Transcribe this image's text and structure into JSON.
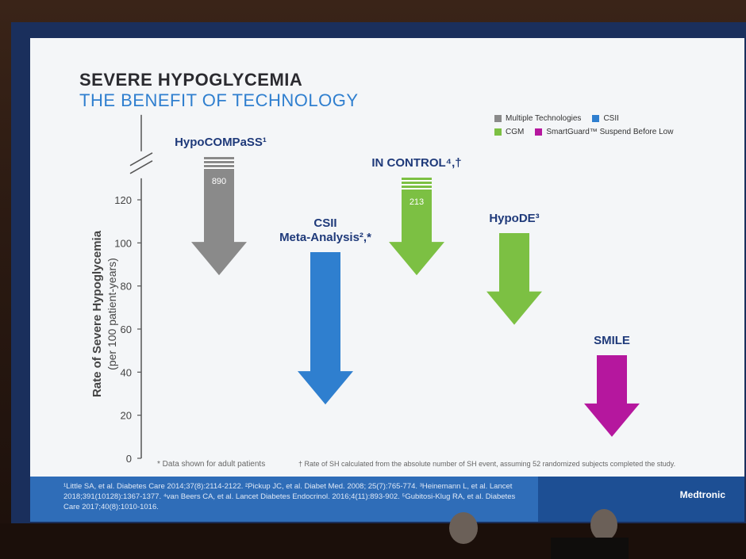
{
  "slide": {
    "title_line1": "SEVERE HYPOGLYCEMIA",
    "title_line2": "THE BENEFIT OF TECHNOLOGY",
    "legend": [
      {
        "label": "Multiple Technologies",
        "color": "#8a8a8a"
      },
      {
        "label": "CSII",
        "color": "#2f7fcf"
      },
      {
        "label": "CGM",
        "color": "#7cc043"
      },
      {
        "label": "SmartGuard™ Suspend Before Low",
        "color": "#b5179e"
      }
    ],
    "ylabel_main": "Rate of Severe Hypoglycemia",
    "ylabel_sub": "(per 100 patient-years)",
    "footnote_left": "* Data shown for adult patients",
    "footnote_right": "† Rate of SH calculated from the absolute number of SH event, assuming 52 randomized subjects completed the study.",
    "references": "¹Little SA, et al. Diabetes Care 2014;37(8):2114-2122. ²Pickup JC, et al. Diabet Med. 2008; 25(7):765-774. ³Heinemann L, et al. Lancet 2018;391(10128):1367-1377. ⁴van Beers CA, et al. Lancet Diabetes Endocrinol. 2016;4(11):893-902. ⁵Gubitosi-Klug RA, et al. Diabetes Care 2017;40(8):1010-1016.",
    "brand": "Medtronic"
  },
  "chart_data": {
    "type": "bar",
    "title": "SEVERE HYPOGLYCEMIA",
    "subtitle": "THE BENEFIT OF TECHNOLOGY",
    "ylabel": "Rate of Severe Hypoglycemia (per 100 patient-years)",
    "ylim": [
      0,
      130
    ],
    "yticks": [
      0,
      20,
      40,
      60,
      80,
      100,
      120
    ],
    "axis_break": true,
    "grid": false,
    "legend_position": "top-right",
    "categories": [
      "HypoCOMPaSS¹",
      "CSII Meta-Analysis²,*",
      "IN CONTROL⁴,†",
      "HypoDE³",
      "SMILE"
    ],
    "series": [
      {
        "name": "Multiple Technologies",
        "color": "#8a8a8a",
        "values": [
          890,
          null,
          null,
          null,
          null
        ]
      },
      {
        "name": "CSII",
        "color": "#2f7fcf",
        "values": [
          null,
          25,
          null,
          null,
          null
        ]
      },
      {
        "name": "CGM",
        "color": "#7cc043",
        "values": [
          null,
          null,
          213,
          62,
          null
        ]
      },
      {
        "name": "SmartGuard™ Suspend Before Low",
        "color": "#b5179e",
        "values": [
          null,
          null,
          null,
          null,
          10
        ]
      }
    ],
    "bars": [
      {
        "category": "HypoCOMPaSS¹",
        "label_line1": "HypoCOMPaSS¹",
        "label_line2": "",
        "value": 890,
        "value_label": "890",
        "axis_break": true,
        "color": "#8a8a8a"
      },
      {
        "category": "CSII Meta-Analysis²,*",
        "label_line1": "CSII",
        "label_line2": "Meta-Analysis²,*",
        "value": 25,
        "value_label": "",
        "axis_break": false,
        "color": "#2f7fcf"
      },
      {
        "category": "IN CONTROL⁴,†",
        "label_line1": "IN CONTROL⁴,†",
        "label_line2": "",
        "value": 213,
        "value_label": "213",
        "axis_break": true,
        "color": "#7cc043"
      },
      {
        "category": "HypoDE³",
        "label_line1": "HypoDE³",
        "label_line2": "",
        "value": 62,
        "value_label": "",
        "axis_break": false,
        "color": "#7cc043"
      },
      {
        "category": "SMILE",
        "label_line1": "SMILE",
        "label_line2": "",
        "value": 10,
        "value_label": "",
        "axis_break": false,
        "color": "#b5179e"
      }
    ]
  }
}
